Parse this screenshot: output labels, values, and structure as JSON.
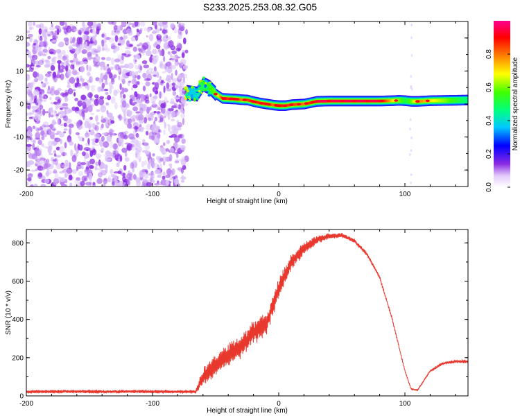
{
  "title": "S233.2025.253.08.32.G05",
  "chart_data": [
    {
      "type": "heatmap",
      "xlabel": "Height of straight line (km)",
      "ylabel": "Frequency (Hz)",
      "xlim": [
        -200,
        150
      ],
      "ylim": [
        -25,
        25
      ],
      "x_ticks": [
        -200,
        -100,
        0,
        100
      ],
      "y_ticks": [
        -20,
        -10,
        0,
        10,
        20
      ],
      "colorbar": {
        "label": "Normalized spectral amplitude",
        "range": [
          0,
          1
        ],
        "ticks": [
          0.0,
          0.2,
          0.4,
          0.6,
          0.8
        ],
        "colormap": [
          "#ffffff",
          "#8a2be2",
          "#0000ff",
          "#00e5ff",
          "#00ff40",
          "#ffff00",
          "#ff8000",
          "#ff0000",
          "#ff0090"
        ]
      },
      "noise_region_x": [
        -200,
        -73
      ],
      "ridge": {
        "x": [
          -73,
          -65,
          -60,
          -55,
          -50,
          -45,
          -40,
          -35,
          -30,
          -25,
          -20,
          -15,
          -10,
          -5,
          0,
          5,
          10,
          20,
          30,
          40,
          60,
          80,
          90,
          95,
          100,
          105,
          110,
          120,
          150
        ],
        "freq_hz": [
          3.5,
          3.0,
          6.0,
          5.0,
          3.0,
          1.7,
          1.6,
          1.5,
          1.3,
          1.2,
          0.7,
          0.3,
          0.0,
          -0.3,
          -0.5,
          -0.5,
          -0.2,
          0.0,
          0.8,
          0.9,
          0.9,
          0.9,
          1.0,
          1.1,
          1.0,
          0.8,
          0.8,
          1.0,
          1.2
        ],
        "amplitude": [
          0.35,
          0.4,
          0.55,
          0.55,
          0.6,
          0.9,
          0.85,
          0.9,
          0.8,
          0.85,
          0.9,
          0.85,
          0.9,
          0.8,
          0.9,
          0.85,
          0.85,
          0.8,
          0.95,
          0.95,
          0.95,
          0.95,
          0.7,
          0.6,
          0.5,
          0.6,
          0.8,
          0.7,
          0.45
        ]
      }
    },
    {
      "type": "line",
      "xlabel": "Height of straight line (km)",
      "ylabel": "SNR (10 * v/v)",
      "xlim": [
        -200,
        150
      ],
      "ylim": [
        0,
        870
      ],
      "x_ticks": [
        -200,
        -100,
        0,
        100
      ],
      "y_ticks": [
        0,
        200,
        400,
        600,
        800
      ],
      "color": "#e8372d",
      "series": [
        {
          "x": [
            -200,
            -180,
            -160,
            -140,
            -120,
            -100,
            -80,
            -66,
            -60,
            -50,
            -40,
            -30,
            -20,
            -10,
            0,
            10,
            20,
            30,
            40,
            50,
            60,
            70,
            80,
            90,
            100,
            105,
            110,
            120,
            130,
            140,
            150
          ],
          "y": [
            22,
            22,
            23,
            22,
            23,
            22,
            22,
            22,
            100,
            160,
            210,
            260,
            330,
            370,
            560,
            700,
            770,
            815,
            835,
            840,
            810,
            740,
            620,
            400,
            130,
            35,
            30,
            130,
            170,
            180,
            180
          ],
          "amplitude": [
            8,
            8,
            8,
            8,
            8,
            8,
            8,
            8,
            45,
            55,
            60,
            65,
            60,
            55,
            50,
            40,
            30,
            22,
            15,
            12,
            10,
            9,
            8,
            8,
            6,
            4,
            4,
            6,
            7,
            8,
            8
          ]
        }
      ]
    }
  ]
}
